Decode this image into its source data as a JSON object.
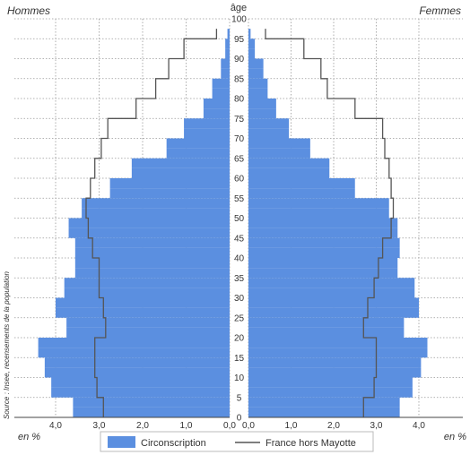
{
  "source_note": "Source : Insee, recensements de la population",
  "chart_data": {
    "type": "bar",
    "subtype": "population-pyramid",
    "left_label": "Hommes",
    "right_label": "Femmes",
    "age_label": "âge",
    "x_unit_label_left": "en %",
    "x_unit_label_right": "en %",
    "age_ticks": [
      0,
      5,
      10,
      15,
      20,
      25,
      30,
      35,
      40,
      45,
      50,
      55,
      60,
      65,
      70,
      75,
      80,
      85,
      90,
      95,
      100
    ],
    "x_ticks": [
      0,
      1,
      2,
      3,
      4
    ],
    "x_tick_labels": [
      "0,0",
      "1,0",
      "2,0",
      "3,0",
      "4,0"
    ],
    "xlim": [
      0,
      4.2
    ],
    "ylim": [
      0,
      100
    ],
    "grid": true,
    "bin_width": 2.5,
    "legend": {
      "position": "bottom",
      "bar_label": "Circonscription",
      "line_label": "France hors Mayotte"
    },
    "colors": {
      "bar": "#5b8fe0",
      "line": "#555555",
      "grid": "#999999"
    },
    "series": [
      {
        "name": "Circonscription",
        "side": "men",
        "kind": "bar",
        "bins": [
          0,
          2.5,
          5,
          7.5,
          10,
          12.5,
          15,
          17.5,
          20,
          22.5,
          25,
          27.5,
          30,
          32.5,
          35,
          37.5,
          40,
          42.5,
          45,
          47.5,
          50,
          52.5,
          55,
          57.5,
          60,
          62.5,
          65,
          67.5,
          70,
          72.5,
          75,
          77.5,
          80,
          82.5,
          85,
          87.5,
          90,
          92.5,
          95
        ],
        "values": [
          3.6,
          3.6,
          4.1,
          4.1,
          4.25,
          4.25,
          4.4,
          4.4,
          3.75,
          3.75,
          4.0,
          4.0,
          3.8,
          3.8,
          3.55,
          3.55,
          3.55,
          3.55,
          3.7,
          3.7,
          3.4,
          3.4,
          2.75,
          2.75,
          2.25,
          2.25,
          1.45,
          1.45,
          1.05,
          1.05,
          0.6,
          0.6,
          0.4,
          0.4,
          0.2,
          0.2,
          0.1,
          0.1,
          0.05
        ]
      },
      {
        "name": "Circonscription",
        "side": "women",
        "kind": "bar",
        "bins": [
          0,
          2.5,
          5,
          7.5,
          10,
          12.5,
          15,
          17.5,
          20,
          22.5,
          25,
          27.5,
          30,
          32.5,
          35,
          37.5,
          40,
          42.5,
          45,
          47.5,
          50,
          52.5,
          55,
          57.5,
          60,
          62.5,
          65,
          67.5,
          70,
          72.5,
          75,
          77.5,
          80,
          82.5,
          85,
          87.5,
          90,
          92.5,
          95
        ],
        "values": [
          3.55,
          3.55,
          3.85,
          3.85,
          4.05,
          4.05,
          4.2,
          4.2,
          3.65,
          3.65,
          4.0,
          4.0,
          3.9,
          3.9,
          3.5,
          3.5,
          3.55,
          3.55,
          3.5,
          3.5,
          3.3,
          3.3,
          2.5,
          2.5,
          1.9,
          1.9,
          1.45,
          1.45,
          0.95,
          0.95,
          0.65,
          0.65,
          0.45,
          0.45,
          0.35,
          0.35,
          0.15,
          0.15,
          0.05
        ]
      },
      {
        "name": "France hors Mayotte",
        "side": "men",
        "kind": "line",
        "bins": [
          0,
          2.5,
          5,
          7.5,
          10,
          12.5,
          15,
          17.5,
          20,
          22.5,
          25,
          27.5,
          30,
          32.5,
          35,
          37.5,
          40,
          42.5,
          45,
          47.5,
          50,
          52.5,
          55,
          57.5,
          60,
          62.5,
          65,
          67.5,
          70,
          72.5,
          75,
          77.5,
          80,
          82.5,
          85,
          87.5,
          90,
          92.5,
          95
        ],
        "values": [
          2.9,
          2.9,
          3.05,
          3.05,
          3.1,
          3.1,
          3.1,
          3.1,
          2.85,
          2.85,
          2.9,
          2.9,
          3.0,
          3.0,
          3.0,
          3.0,
          3.15,
          3.15,
          3.25,
          3.25,
          3.3,
          3.3,
          3.2,
          3.2,
          3.1,
          3.1,
          2.95,
          2.95,
          2.8,
          2.8,
          2.15,
          2.15,
          1.7,
          1.7,
          1.4,
          1.4,
          1.05,
          1.05,
          0.3
        ]
      },
      {
        "name": "France hors Mayotte",
        "side": "women",
        "kind": "line",
        "bins": [
          0,
          2.5,
          5,
          7.5,
          10,
          12.5,
          15,
          17.5,
          20,
          22.5,
          25,
          27.5,
          30,
          32.5,
          35,
          37.5,
          40,
          42.5,
          45,
          47.5,
          50,
          52.5,
          55,
          57.5,
          60,
          62.5,
          65,
          67.5,
          70,
          72.5,
          75,
          77.5,
          80,
          82.5,
          85,
          87.5,
          90,
          92.5,
          95
        ],
        "values": [
          2.7,
          2.7,
          2.95,
          2.95,
          3.0,
          3.0,
          3.0,
          3.0,
          2.7,
          2.7,
          2.8,
          2.8,
          2.95,
          2.95,
          3.05,
          3.05,
          3.15,
          3.15,
          3.35,
          3.35,
          3.4,
          3.4,
          3.35,
          3.35,
          3.3,
          3.3,
          3.2,
          3.2,
          3.15,
          3.15,
          2.5,
          2.5,
          1.85,
          1.85,
          1.7,
          1.7,
          1.3,
          1.3,
          0.4
        ]
      }
    ]
  }
}
